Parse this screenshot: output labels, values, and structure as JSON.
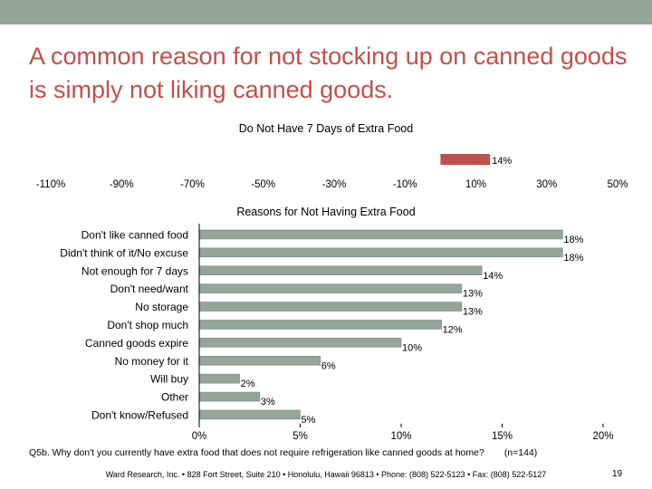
{
  "slide": {
    "title": "A common reason for not stocking up on canned goods is simply not liking canned goods.",
    "footnote_question": "Q5b. Why don't you currently have extra food that does not require refrigeration like canned goods at home?",
    "footnote_n": "(n=144)",
    "footer": "Ward Research, Inc. • 828 Fort Street, Suite 210 • Honolulu, Hawaii 96813 • Phone: (808) 522-5123 • Fax: (808) 522-5127",
    "page_number": "19",
    "accent_color": "#c0504d",
    "header_bar_color": "#94a59b"
  },
  "chart_data": [
    {
      "type": "bar",
      "orientation": "horizontal",
      "title": "Do Not Have 7 Days of Extra Food",
      "categories": [
        ""
      ],
      "values": [
        14
      ],
      "data_labels": [
        "14%"
      ],
      "xlim": [
        -110,
        50
      ],
      "x_ticks": [
        -110,
        -90,
        -70,
        -50,
        -30,
        -10,
        10,
        30,
        50
      ],
      "x_tick_labels": [
        "-110%",
        "-90%",
        "-70%",
        "-50%",
        "-30%",
        "-10%",
        "10%",
        "30%",
        "50%"
      ],
      "bar_color": "#c0504d"
    },
    {
      "type": "bar",
      "orientation": "horizontal",
      "title": "Reasons for Not Having Extra Food",
      "categories": [
        "Don't like canned food",
        "Didn't think of it/No excuse",
        "Not enough for 7 days",
        "Don't need/want",
        "No storage",
        "Don't shop much",
        "Canned goods expire",
        "No money for it",
        "Will buy",
        "Other",
        "Don't know/Refused"
      ],
      "values": [
        18,
        18,
        14,
        13,
        13,
        12,
        10,
        6,
        2,
        3,
        5
      ],
      "data_labels": [
        "18%",
        "18%",
        "14%",
        "13%",
        "13%",
        "12%",
        "10%",
        "6%",
        "2%",
        "3%",
        "5%"
      ],
      "xlim": [
        0,
        20
      ],
      "x_ticks": [
        0,
        5,
        10,
        15,
        20
      ],
      "x_tick_labels": [
        "0%",
        "5%",
        "10%",
        "15%",
        "20%"
      ],
      "bar_color": "#94a59b"
    }
  ]
}
